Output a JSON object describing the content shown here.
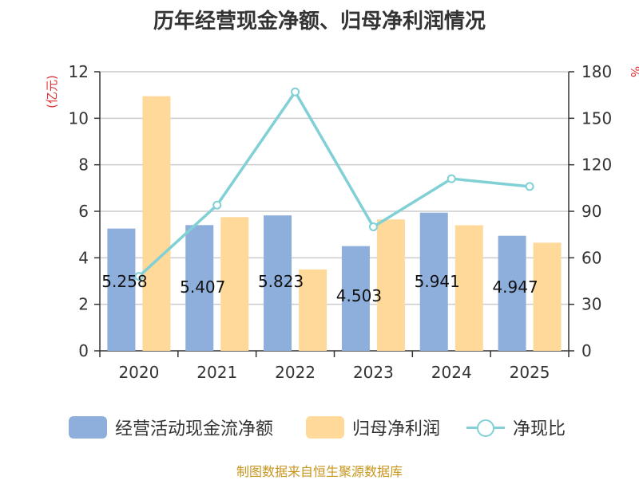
{
  "title": "历年经营现金净额、归母净利润情况",
  "left_unit": "(亿元)",
  "right_unit": "%",
  "source": "制图数据来自恒生聚源数据库",
  "colors": {
    "cash": "#8eaedb",
    "profit": "#fed99a",
    "ratio": "#80d0d6",
    "grid": "#cccccc",
    "axis": "#333333"
  },
  "chart_data": {
    "type": "bar",
    "title": "历年经营现金净额、归母净利润情况",
    "categories": [
      "2020",
      "2021",
      "2022",
      "2023",
      "2024",
      "2025"
    ],
    "series": [
      {
        "name": "经营活动现金流净额",
        "type": "bar",
        "axis": "left",
        "values": [
          5.258,
          5.407,
          5.823,
          4.503,
          5.941,
          4.947
        ],
        "labels": [
          "5.258",
          "5.407",
          "5.823",
          "4.503",
          "5.941",
          "4.947"
        ]
      },
      {
        "name": "归母净利润",
        "type": "bar",
        "axis": "left",
        "values": [
          10.95,
          5.75,
          3.5,
          5.65,
          5.4,
          4.65
        ]
      },
      {
        "name": "净现比",
        "type": "line",
        "axis": "right",
        "values": [
          48,
          94,
          167,
          80,
          111,
          106
        ]
      }
    ],
    "left_axis": {
      "label": "(亿元)",
      "ylim": [
        0,
        12
      ],
      "ticks": [
        "0",
        "2",
        "4",
        "6",
        "8",
        "10",
        "12"
      ]
    },
    "right_axis": {
      "label": "%",
      "ylim": [
        0,
        180
      ],
      "ticks": [
        "0",
        "30",
        "60",
        "90",
        "120",
        "150",
        "180"
      ]
    },
    "grid": true,
    "legend": "bottom"
  }
}
